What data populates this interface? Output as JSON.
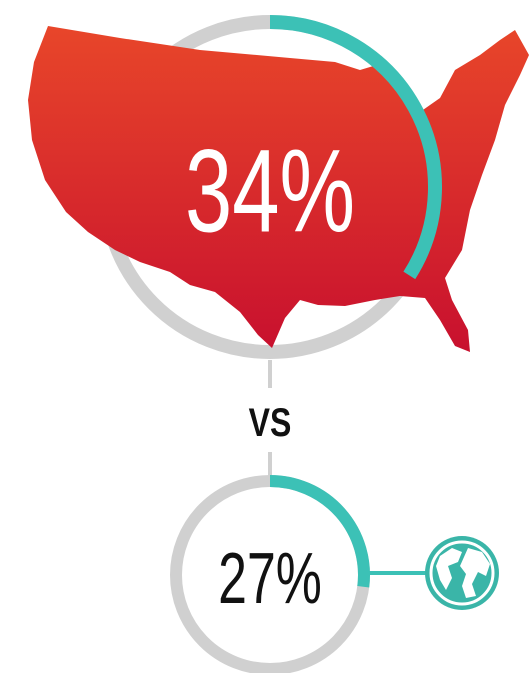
{
  "chart_data": [
    {
      "type": "donut",
      "values": [
        34
      ],
      "value_labels": [
        "34%"
      ],
      "color": "#3cc1b6",
      "track_color": "#d0d0d0"
    },
    {
      "type": "donut",
      "values": [
        27
      ],
      "value_labels": [
        "27%"
      ],
      "color": "#3cc1b6",
      "track_color": "#d0d0d0"
    }
  ],
  "separator": "VS"
}
